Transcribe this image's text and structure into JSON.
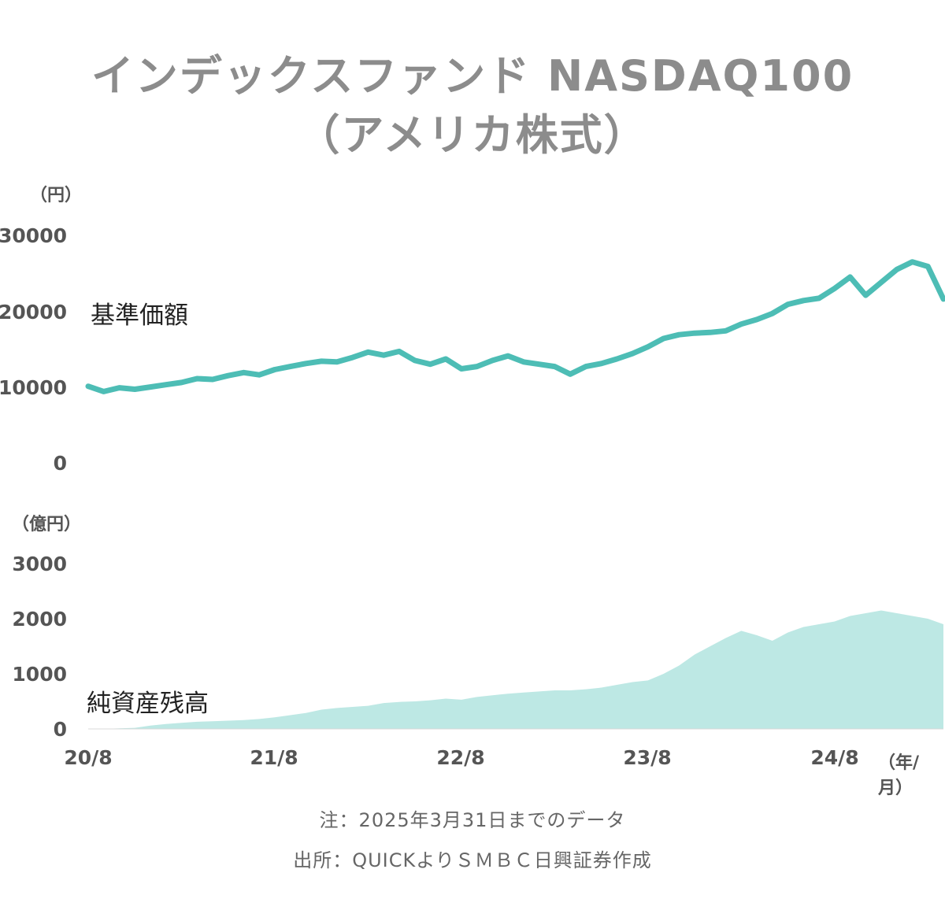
{
  "title_line1": "インデックスファンド NASDAQ100",
  "title_line2": "（アメリカ株式）",
  "colors": {
    "price_line": "#4dbdb5",
    "aum_fill": "#bde8e4",
    "title": "#8c8c8c"
  },
  "chart_data": [
    {
      "type": "line",
      "series_label": "基準価額",
      "ylabel": "（円）",
      "ylim": [
        0,
        30000
      ],
      "yticks": [
        "30000",
        "20000",
        "10000",
        "0"
      ],
      "x": [
        0,
        1,
        2,
        3,
        4,
        5,
        6,
        7,
        8,
        9,
        10,
        11,
        12,
        13,
        14,
        15,
        16,
        17,
        18,
        19,
        20,
        21,
        22,
        23,
        24,
        25,
        26,
        27,
        28,
        29,
        30,
        31,
        32,
        33,
        34,
        35,
        36,
        37,
        38,
        39,
        40,
        41,
        42,
        43,
        44,
        45,
        46,
        47,
        48,
        49,
        50,
        51,
        52,
        53,
        54,
        55
      ],
      "values": [
        10000,
        9300,
        9800,
        9600,
        9900,
        10200,
        10500,
        11000,
        10900,
        11400,
        11800,
        11500,
        12200,
        12600,
        13000,
        13300,
        13200,
        13800,
        14500,
        14100,
        14600,
        13400,
        12900,
        13600,
        12300,
        12600,
        13400,
        14000,
        13200,
        12900,
        12600,
        11600,
        12600,
        13000,
        13600,
        14300,
        15200,
        16300,
        16800,
        17000,
        17100,
        17300,
        18200,
        18800,
        19600,
        20800,
        21300,
        21600,
        22900,
        24400,
        22000,
        23700,
        25400,
        26400,
        25800,
        21500
      ],
      "series": [
        {
          "name": "基準価額"
        }
      ]
    },
    {
      "type": "area",
      "series_label": "純資産残高",
      "ylabel": "（億円）",
      "ylim": [
        0,
        3000
      ],
      "yticks": [
        "3000",
        "2000",
        "1000",
        "0"
      ],
      "x": [
        0,
        1,
        2,
        3,
        4,
        5,
        6,
        7,
        8,
        9,
        10,
        11,
        12,
        13,
        14,
        15,
        16,
        17,
        18,
        19,
        20,
        21,
        22,
        23,
        24,
        25,
        26,
        27,
        28,
        29,
        30,
        31,
        32,
        33,
        34,
        35,
        36,
        37,
        38,
        39,
        40,
        41,
        42,
        43,
        44,
        45,
        46,
        47,
        48,
        49,
        50,
        51,
        52,
        53,
        54,
        55
      ],
      "values": [
        0,
        0,
        10,
        20,
        60,
        90,
        110,
        130,
        140,
        150,
        160,
        180,
        210,
        250,
        290,
        350,
        380,
        400,
        420,
        470,
        490,
        500,
        520,
        550,
        530,
        580,
        610,
        640,
        660,
        680,
        700,
        700,
        720,
        750,
        800,
        850,
        880,
        1000,
        1150,
        1350,
        1500,
        1650,
        1780,
        1700,
        1600,
        1750,
        1850,
        1900,
        1950,
        2050,
        2100,
        2150,
        2100,
        2050,
        2000,
        1900
      ],
      "xticks": [
        "20/8",
        "21/8",
        "22/8",
        "23/8",
        "24/8"
      ],
      "xunit": "（年/月）"
    }
  ],
  "note": "注：2025年3月31日までのデータ",
  "source": "出所：QUICKよりＳＭＢＣ日興証券作成"
}
